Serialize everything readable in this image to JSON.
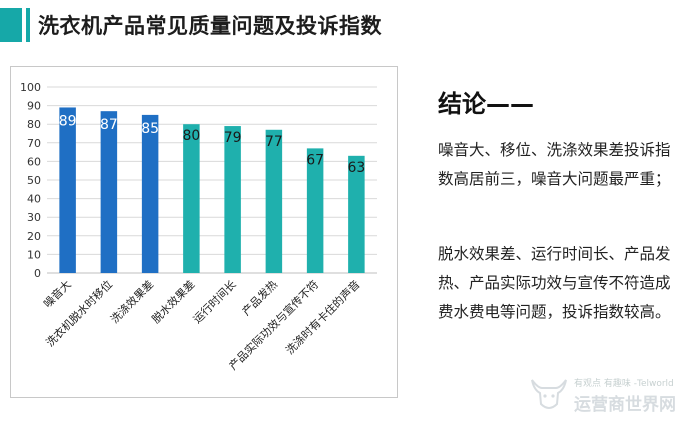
{
  "header": {
    "title": "洗衣机产品常见质量问题及投诉指数"
  },
  "conclusion": {
    "title": "结论——",
    "para1": "噪音大、移位、洗涤效果差投诉指数高居前三，噪音大问题最严重；",
    "para2": "脱水效果差、运行时间长、产品发热、产品实际功效与宣传不符造成费水费电等问题，投诉指数较高。"
  },
  "watermark": {
    "small": "有观点 有趣味 -Telworld",
    "big": "运营商世界网",
    "icon": "bull-head-icon"
  },
  "colors": {
    "accent": "#16a8a8",
    "blue": "#1f6fc4",
    "teal": "#1fb0ad"
  },
  "chart_data": {
    "type": "bar",
    "categories": [
      "噪音大",
      "洗衣机脱水时移位",
      "洗涤效果差",
      "脱水效果差",
      "运行时间长",
      "产品发热",
      "产品实际功效与宣传不符",
      "洗涤时有卡住的声音"
    ],
    "values": [
      89,
      87,
      85,
      80,
      79,
      77,
      67,
      63
    ],
    "bar_colors": [
      "#1f6fc4",
      "#1f6fc4",
      "#1f6fc4",
      "#1fb0ad",
      "#1fb0ad",
      "#1fb0ad",
      "#1fb0ad",
      "#1fb0ad"
    ],
    "ylim": [
      0,
      100
    ],
    "yticks": [
      0,
      10,
      20,
      30,
      40,
      50,
      60,
      70,
      80,
      90,
      100
    ],
    "grid": true,
    "legend": "none"
  }
}
